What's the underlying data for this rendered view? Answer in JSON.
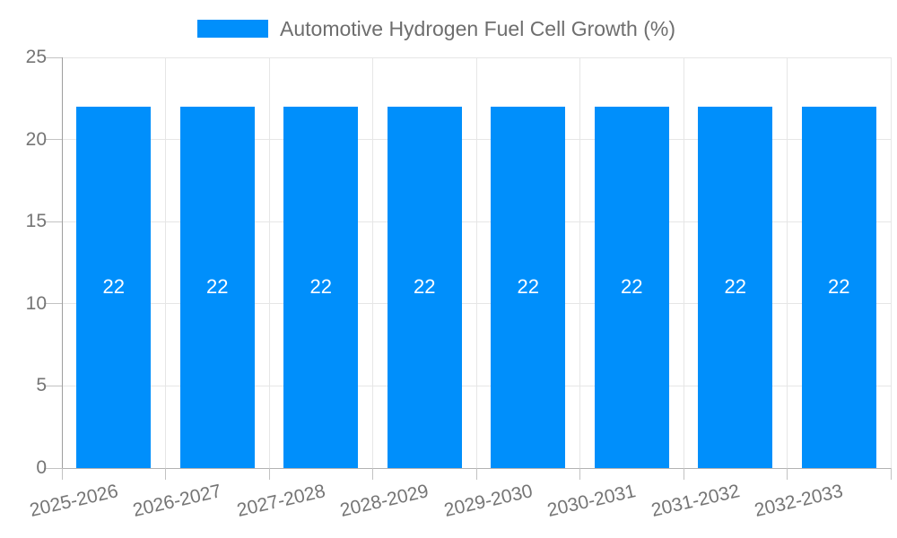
{
  "legend": {
    "label": "Automotive Hydrogen Fuel Cell Growth (%)"
  },
  "colors": {
    "bar": "#008ffb",
    "grid": "#e6e6e6",
    "axis": "#9e9e9e",
    "baseline": "#b3b3b3",
    "tick": "#c2c2c2",
    "axis_label": "#757575",
    "legend_label": "#6e6e6e",
    "bar_label": "#ffffff",
    "background": "#ffffff"
  },
  "chart_data": {
    "type": "bar",
    "title": "Automotive Hydrogen Fuel Cell Growth (%)",
    "categories": [
      "2025-2026",
      "2026-2027",
      "2027-2028",
      "2028-2029",
      "2029-2030",
      "2030-2031",
      "2031-2032",
      "2032-2033"
    ],
    "values": [
      22,
      22,
      22,
      22,
      22,
      22,
      22,
      22
    ],
    "bar_value_labels": [
      "22",
      "22",
      "22",
      "22",
      "22",
      "22",
      "22",
      "22"
    ],
    "xlabel": "",
    "ylabel": "",
    "ylim": [
      0,
      25
    ],
    "yticks": [
      0,
      5,
      10,
      15,
      20,
      25
    ],
    "grid": true,
    "legend_position": "top",
    "x_label_rotation_deg": -13
  }
}
